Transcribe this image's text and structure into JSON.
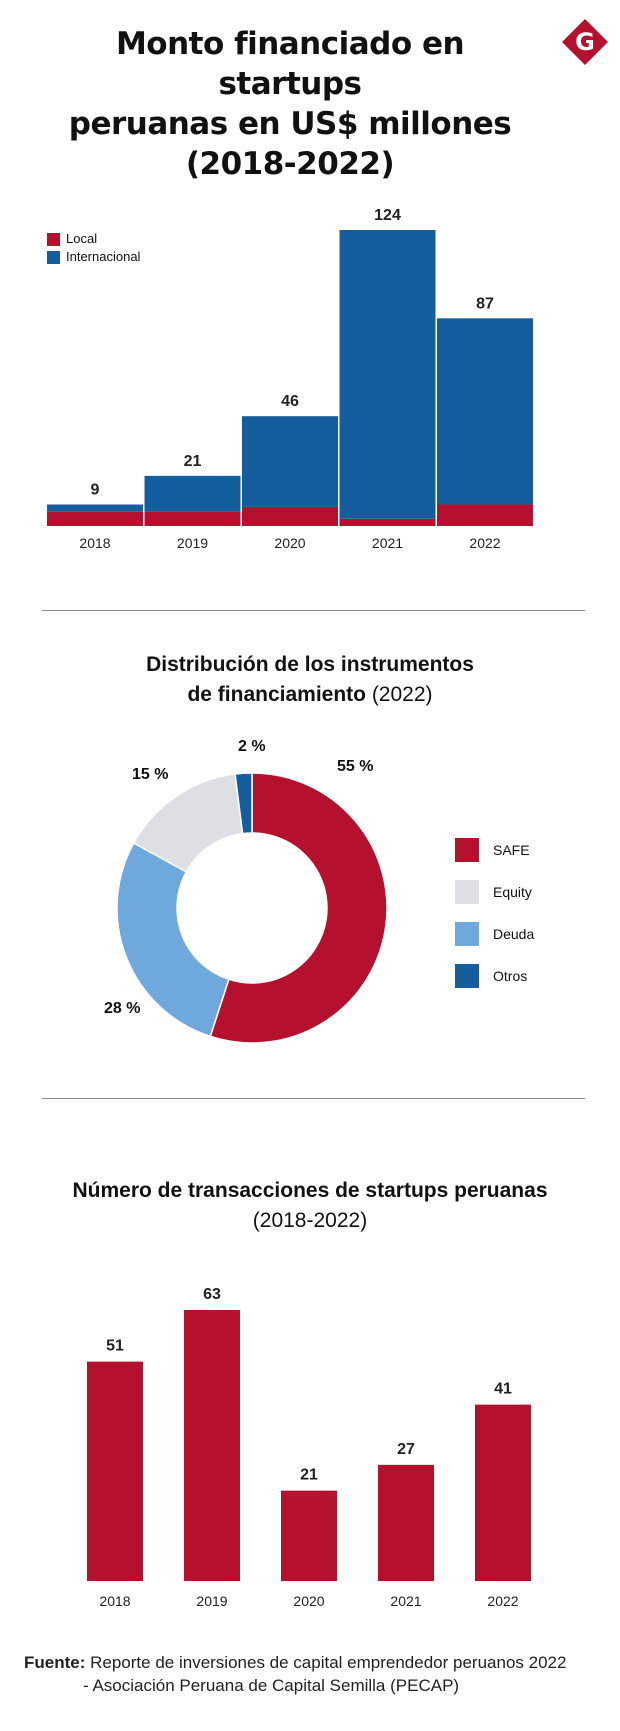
{
  "header": {
    "title_lines": [
      "Monto financiado en startups",
      "peruanas en US$ millones",
      "(2018-2022)"
    ],
    "logo_letter": "G",
    "logo_color": "#b5102e"
  },
  "colors": {
    "local": "#b5102e",
    "internacional": "#155e9e",
    "safe": "#b5102e",
    "equity": "#dcdfe3",
    "deuda": "#6fa8dc",
    "otros": "#155e9e"
  },
  "legend_funding": [
    {
      "label": "Local",
      "color": "#b5102e"
    },
    {
      "label": "Internacional",
      "color": "#155e9e"
    }
  ],
  "donut_title": {
    "line1": "Distribución de los instrumentos",
    "line2_bold": "de financiamiento",
    "line2_normal": " (2022)"
  },
  "donut_pct_labels": [
    "55 %",
    "15 %",
    "2 %",
    "28 %"
  ],
  "legend_instruments": [
    {
      "label": "SAFE",
      "color": "#b5102e"
    },
    {
      "label": "Equity",
      "color": "#dcdfe3"
    },
    {
      "label": "Deuda",
      "color": "#6fa8dc"
    },
    {
      "label": "Otros",
      "color": "#155e9e"
    }
  ],
  "transactions_title": {
    "line1": "Número de transacciones de startups peruanas",
    "line2": "(2018-2022)"
  },
  "source": {
    "label": "Fuente:",
    "line1": "Reporte de inversiones de capital emprendedor peruanos 2022",
    "line2": "- Asociación Peruana de Capital Semilla (PECAP)"
  },
  "chart_data": [
    {
      "type": "bar",
      "stacked": true,
      "categories": [
        "2018",
        "2019",
        "2020",
        "2021",
        "2022"
      ],
      "series": [
        {
          "name": "Local",
          "values": [
            6,
            6,
            8,
            3,
            9
          ]
        },
        {
          "name": "Internacional",
          "values": [
            3,
            15,
            38,
            121,
            78
          ]
        }
      ],
      "totals": [
        "9",
        "21",
        "46",
        "124",
        "87"
      ],
      "total_values": [
        9,
        21,
        46,
        124,
        87
      ],
      "ylim": [
        0,
        124
      ],
      "legend": "top-left",
      "grid": false
    },
    {
      "type": "pie",
      "donut": true,
      "labels": [
        "SAFE",
        "Equity",
        "Deuda",
        "Otros"
      ],
      "values": [
        55,
        15,
        28,
        2
      ],
      "legend": "right"
    },
    {
      "type": "bar",
      "categories": [
        "2018",
        "2019",
        "2020",
        "2021",
        "2022"
      ],
      "values": [
        51,
        63,
        21,
        27,
        41
      ],
      "value_labels": [
        "51",
        "63",
        "21",
        "27",
        "41"
      ],
      "ylim": [
        0,
        63
      ],
      "grid": false
    }
  ]
}
